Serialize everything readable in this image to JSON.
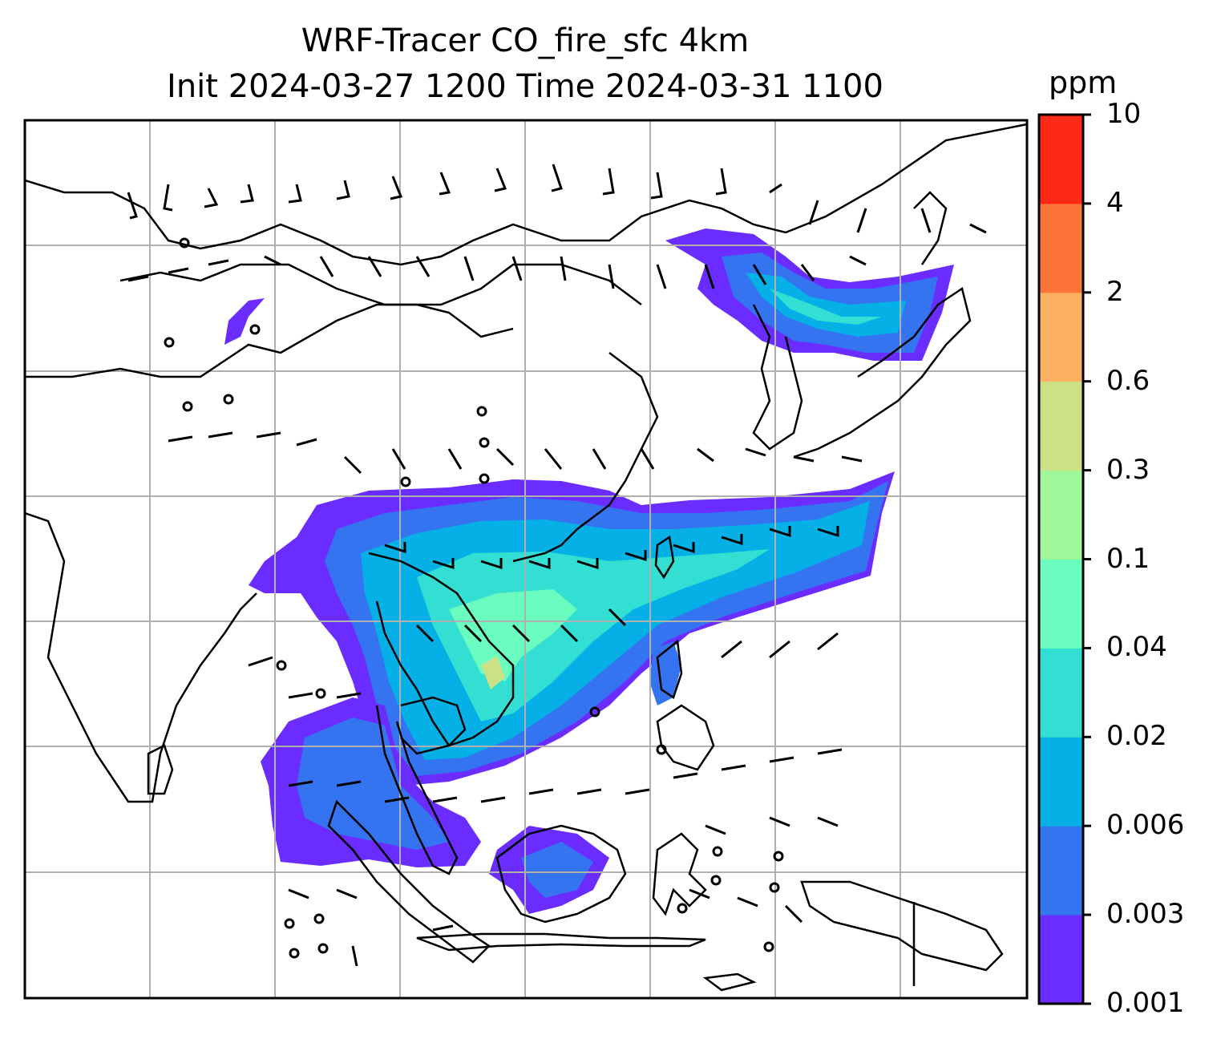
{
  "title_line1": "WRF-Tracer CO_fire_sfc 4km",
  "title_line2": "Init 2024-03-27 1200 Time 2024-03-31 1100",
  "colorbar": {
    "unit": "ppm",
    "levels": [
      "0.001",
      "0.003",
      "0.006",
      "0.02",
      "0.04",
      "0.1",
      "0.3",
      "0.6",
      "2",
      "4",
      "10"
    ],
    "colors": [
      "#6a2cff",
      "#3574f0",
      "#04b0e6",
      "#32dfd2",
      "#6bfcbf",
      "#9ff79a",
      "#cce186",
      "#fcb061",
      "#fc7438",
      "#fd2a18"
    ]
  },
  "map": {
    "gridlines": true,
    "plume_colors": {
      "faint": "#6a2cff",
      "low": "#3574f0",
      "mid": "#04b0e6",
      "high": "#32dfd2",
      "peak": "#6bfcbf",
      "max": "#cce186"
    }
  }
}
